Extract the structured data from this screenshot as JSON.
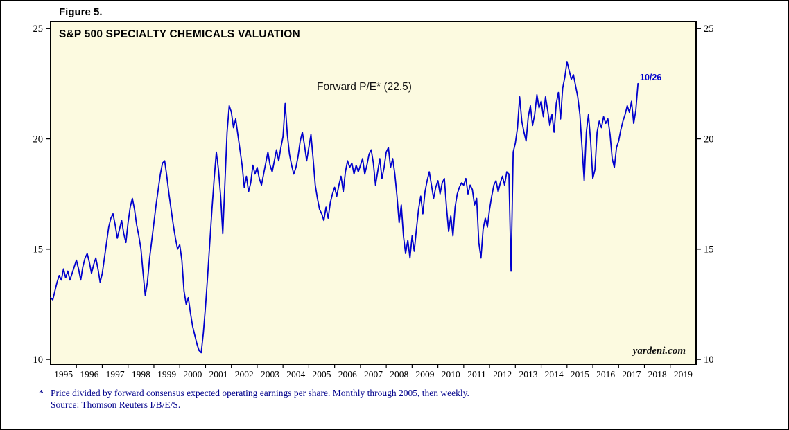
{
  "figure_label": "Figure 5.",
  "chart": {
    "title": "S&P 500 SPECIALTY CHEMICALS VALUATION",
    "annotation": "Forward P/E* (22.5)",
    "latest_date_label": "10/26",
    "latest_value": 22.5,
    "watermark": "yardeni.com",
    "line_color": "#0000CD",
    "plot_bg": "#FCFAE0",
    "frame_color": "#000000",
    "footnote_color": "#00008B"
  },
  "footnote": {
    "marker": "*",
    "line1": "Price divided by forward consensus expected operating earnings per share. Monthly through 2005, then weekly.",
    "line2": "Source: Thomson Reuters I/B/E/S."
  },
  "chart_data": {
    "type": "line",
    "title": "S&P 500 SPECIALTY CHEMICALS VALUATION",
    "ylim": [
      10,
      25
    ],
    "xlim": [
      1995,
      2020
    ],
    "yticks": [
      10,
      15,
      20,
      25
    ],
    "xticks": [
      1995,
      1996,
      1997,
      1998,
      1999,
      2000,
      2001,
      2002,
      2003,
      2004,
      2005,
      2006,
      2007,
      2008,
      2009,
      2010,
      2011,
      2012,
      2013,
      2014,
      2015,
      2016,
      2017,
      2018,
      2019
    ],
    "grid": false,
    "legend": "none",
    "annotations": [
      {
        "text": "Forward P/E* (22.5)"
      },
      {
        "text": "10/26",
        "x": 2017.75,
        "y": 22.5
      }
    ],
    "series": [
      {
        "name": "Forward P/E",
        "color": "#0000CD",
        "x_start": 1995.0,
        "x_step_years": 0.0833333,
        "values": [
          12.8,
          12.7,
          13.1,
          13.5,
          13.8,
          13.6,
          14.1,
          13.7,
          14.0,
          13.6,
          13.9,
          14.2,
          14.5,
          14.1,
          13.6,
          14.2,
          14.6,
          14.8,
          14.4,
          13.9,
          14.3,
          14.6,
          14.1,
          13.5,
          13.9,
          14.6,
          15.3,
          16.0,
          16.4,
          16.6,
          16.1,
          15.5,
          15.9,
          16.3,
          15.7,
          15.3,
          16.2,
          16.9,
          17.3,
          16.8,
          16.1,
          15.6,
          15.0,
          13.9,
          12.9,
          13.5,
          14.6,
          15.4,
          16.2,
          17.0,
          17.7,
          18.4,
          18.9,
          19.0,
          18.3,
          17.5,
          16.8,
          16.1,
          15.5,
          15.0,
          15.2,
          14.5,
          13.1,
          12.5,
          12.8,
          12.1,
          11.5,
          11.1,
          10.7,
          10.4,
          10.3,
          11.2,
          12.4,
          13.8,
          15.3,
          16.8,
          18.2,
          19.4,
          18.6,
          17.4,
          15.7,
          18.0,
          20.3,
          21.5,
          21.2,
          20.5,
          20.9,
          20.2,
          19.5,
          18.8,
          17.8,
          18.3,
          17.6,
          18.0,
          18.8,
          18.4,
          18.7,
          18.2,
          17.9,
          18.4,
          18.9,
          19.4,
          18.8,
          18.5,
          19.0,
          19.5,
          19.0,
          19.6,
          20.1,
          21.6,
          20.2,
          19.3,
          18.8,
          18.4,
          18.7,
          19.2,
          19.9,
          20.3,
          19.7,
          19.0,
          19.6,
          20.2,
          19.1,
          17.9,
          17.3,
          16.8,
          16.6,
          16.3,
          16.9,
          16.4,
          17.1,
          17.5,
          17.8,
          17.4,
          17.9,
          18.3,
          17.6,
          18.5,
          19.0,
          18.7,
          18.9,
          18.4,
          18.8,
          18.5,
          18.8,
          19.1,
          18.4,
          18.8,
          19.3,
          19.5,
          18.9,
          17.9,
          18.5,
          19.1,
          18.2,
          18.7,
          19.4,
          19.6,
          18.7,
          19.1,
          18.4,
          17.4,
          16.2,
          17.0,
          15.6,
          14.8,
          15.4,
          14.6,
          15.6,
          14.9,
          15.9,
          16.8,
          17.4,
          16.6,
          17.6,
          18.1,
          18.5,
          17.9,
          17.3,
          17.8,
          18.1,
          17.5,
          18.0,
          18.2,
          16.9,
          15.8,
          16.5,
          15.6,
          16.9,
          17.5,
          17.8,
          18.0,
          17.9,
          18.2,
          17.5,
          17.9,
          17.7,
          17.0,
          17.3,
          15.3,
          14.6,
          15.9,
          16.4,
          16.0,
          16.8,
          17.4,
          17.9,
          18.1,
          17.6,
          18.0,
          18.3,
          17.9,
          18.5,
          18.4,
          14.0,
          19.4,
          19.8,
          20.5,
          21.9,
          20.8,
          20.3,
          19.9,
          21.0,
          21.5,
          20.6,
          21.1,
          22.0,
          21.4,
          21.7,
          21.0,
          21.9,
          21.3,
          20.6,
          21.1,
          20.3,
          21.6,
          22.1,
          20.9,
          22.3,
          22.8,
          23.5,
          23.1,
          22.7,
          22.9,
          22.4,
          21.9,
          21.1,
          19.6,
          18.1,
          20.3,
          21.1,
          19.9,
          18.2,
          18.6,
          20.3,
          20.8,
          20.5,
          21.0,
          20.7,
          20.9,
          20.2,
          19.1,
          18.7,
          19.6,
          19.9,
          20.4,
          20.8,
          21.1,
          21.5,
          21.2,
          21.7,
          20.7,
          21.3,
          22.5
        ]
      }
    ]
  }
}
